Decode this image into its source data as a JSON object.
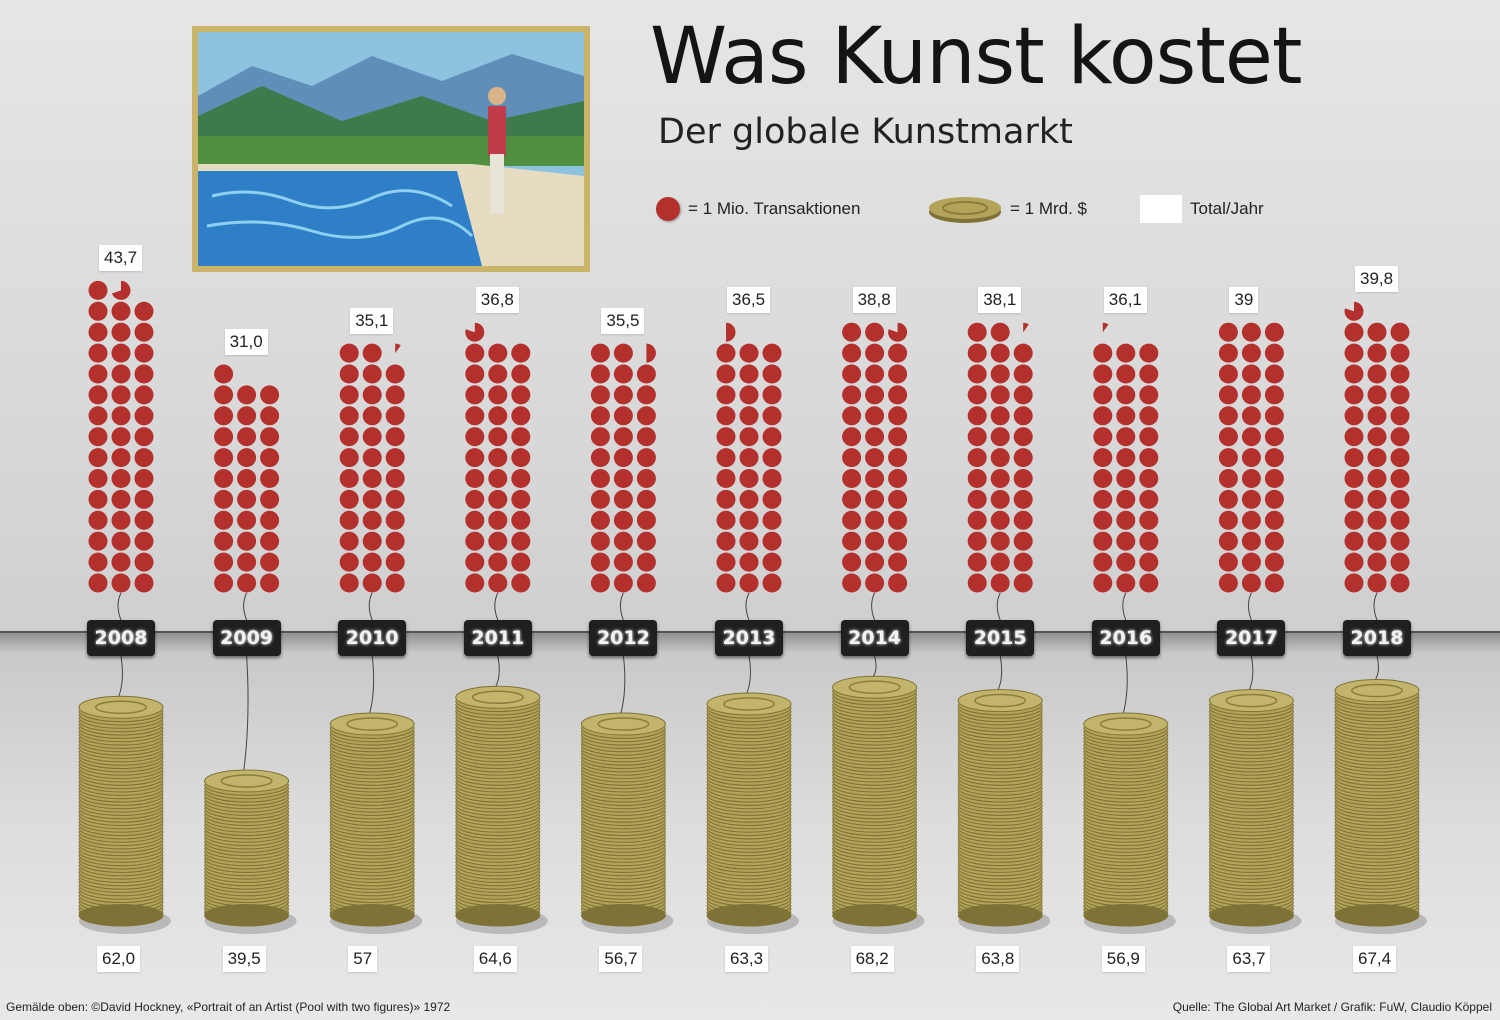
{
  "header": {
    "title": "Was Kunst kostet",
    "subtitle": "Der globale Kunstmarkt"
  },
  "legend": {
    "dot_label": "= 1 Mio. Transaktionen",
    "coin_label": "= 1 Mrd. $",
    "total_label": "Total/Jahr"
  },
  "colors": {
    "dot": "#b3302d",
    "coin": "#b3a45a",
    "coin_dark": "#7e7236",
    "tag_bg": "#1f1f1f"
  },
  "chart_data": {
    "type": "bar",
    "categories": [
      "2008",
      "2009",
      "2010",
      "2011",
      "2012",
      "2013",
      "2014",
      "2015",
      "2016",
      "2017",
      "2018"
    ],
    "series": [
      {
        "name": "= 1 Mio. Transaktionen",
        "values": [
          43.7,
          31.0,
          35.1,
          36.8,
          35.5,
          36.5,
          38.8,
          38.1,
          36.1,
          39,
          39.8
        ],
        "labels": [
          "43,7",
          "31,0",
          "35,1",
          "36,8",
          "35,5",
          "36,5",
          "38,8",
          "38,1",
          "36,1",
          "39",
          "39,8"
        ]
      },
      {
        "name": "= 1 Mrd. $",
        "values": [
          62.0,
          39.5,
          57,
          64.6,
          56.7,
          63.3,
          68.2,
          63.8,
          56.9,
          63.7,
          67.4
        ],
        "labels": [
          "62,0",
          "39,5",
          "57",
          "64,6",
          "56,7",
          "63,3",
          "68,2",
          "63,8",
          "56,9",
          "63,7",
          "67,4"
        ]
      }
    ]
  },
  "footer": {
    "left": "Gemälde oben: ©David Hockney, «Portrait of an Artist (Pool with two figures)» 1972",
    "right": "Quelle:  The Global Art Market / Grafik: FuW, Claudio Köppel"
  }
}
